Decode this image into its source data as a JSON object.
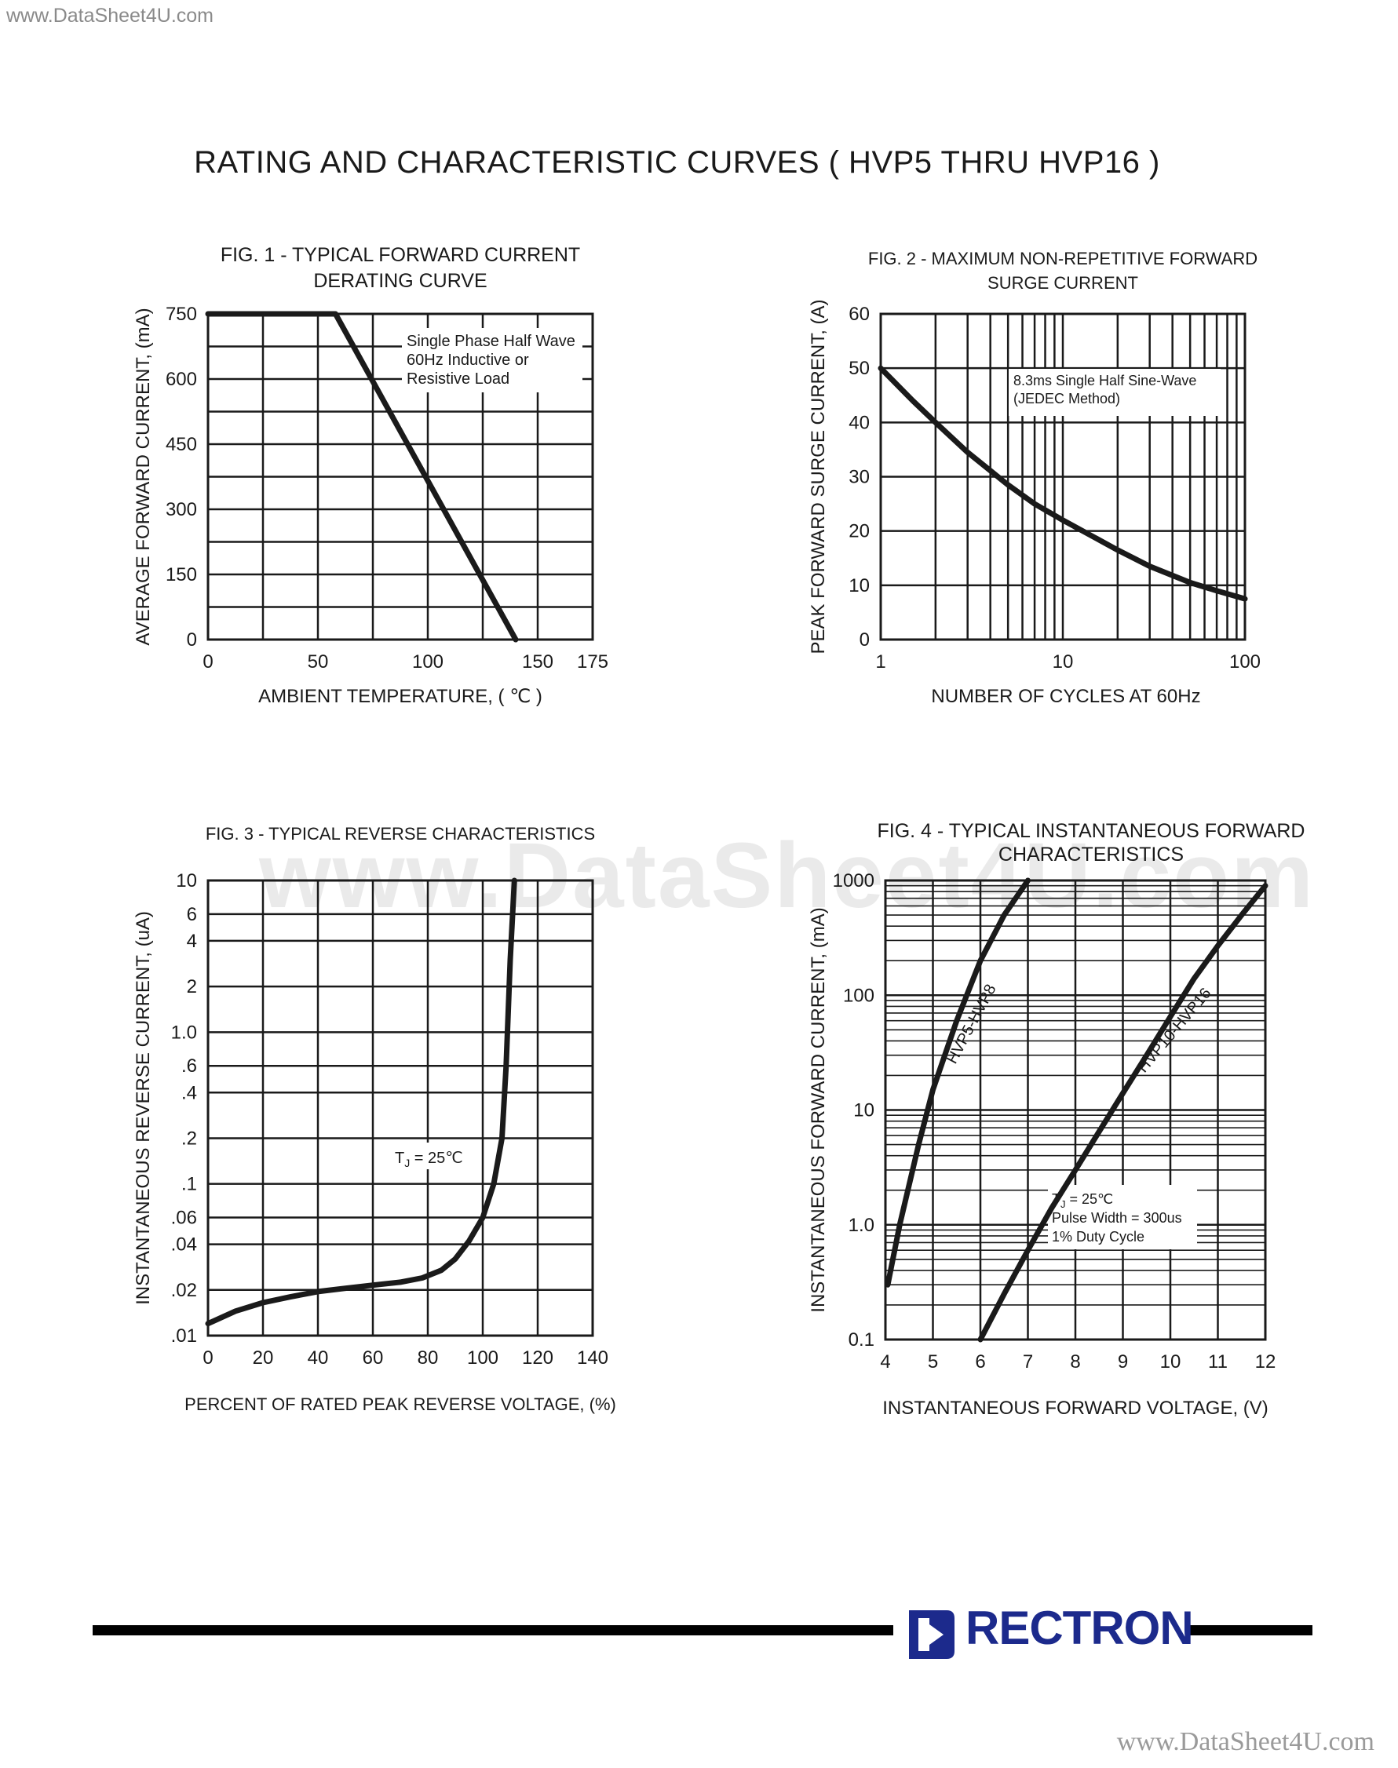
{
  "watermark_top": "www.DataSheet4U.com",
  "watermark_bottom": "www.DataSheet4U.com",
  "watermark_center": "www.DataSheet4U.com",
  "page_title": "RATING AND CHARACTERISTIC CURVES ( HVP5 THRU HVP16 )",
  "brand": {
    "name": "RECTRON",
    "color": "#1c2a8c"
  },
  "chart_data": [
    {
      "type": "line",
      "title": "FIG. 1 - TYPICAL FORWARD CURRENT DERATING CURVE",
      "title_lines": [
        "FIG. 1 - TYPICAL FORWARD CURRENT",
        "DERATING CURVE"
      ],
      "xlabel": "AMBIENT TEMPERATURE, ( ℃ )",
      "ylabel": "AVERAGE FORWARD CURRENT, (mA)",
      "xlim": [
        0,
        175
      ],
      "ylim": [
        0,
        750
      ],
      "xscale": "linear",
      "yscale": "linear",
      "xticks": [
        0,
        50,
        100,
        150,
        175
      ],
      "yticks": [
        0,
        150,
        300,
        450,
        600,
        750
      ],
      "grid": true,
      "annotation": [
        "Single Phase Half Wave",
        "60Hz Inductive or",
        "Resistive Load"
      ],
      "series": [
        {
          "x": [
            0,
            58,
            140
          ],
          "y": [
            750,
            750,
            0
          ]
        }
      ]
    },
    {
      "type": "line",
      "title": "FIG. 2 - MAXIMUM NON-REPETITIVE FORWARD SURGE CURRENT",
      "title_lines": [
        "FIG. 2 - MAXIMUM NON-REPETITIVE FORWARD",
        "SURGE CURRENT"
      ],
      "xlabel": "NUMBER OF CYCLES AT 60Hz",
      "ylabel": "PEAK FORWARD SURGE CURRENT, (A)",
      "xlim": [
        1,
        100
      ],
      "ylim": [
        0,
        60
      ],
      "xscale": "log",
      "yscale": "linear",
      "xticks": [
        1,
        10,
        100
      ],
      "yticks": [
        0,
        10,
        20,
        30,
        40,
        50,
        60
      ],
      "grid": true,
      "annotation": [
        "8.3ms Single Half Sine-Wave",
        "(JEDEC Method)"
      ],
      "series": [
        {
          "x": [
            1,
            1.5,
            2,
            3,
            5,
            7,
            10,
            20,
            30,
            50,
            70,
            100
          ],
          "y": [
            50,
            44,
            40,
            34.5,
            28.5,
            25,
            22,
            16.5,
            13.5,
            10.5,
            9,
            7.5
          ]
        }
      ]
    },
    {
      "type": "line",
      "title": "FIG. 3 - TYPICAL REVERSE CHARACTERISTICS",
      "title_lines": [
        "FIG. 3 - TYPICAL REVERSE CHARACTERISTICS"
      ],
      "xlabel": "PERCENT OF RATED PEAK REVERSE VOLTAGE, (%)",
      "ylabel": "INSTANTANEOUS REVERSE CURRENT, (uA)",
      "xlim": [
        0,
        140
      ],
      "ylim": [
        0.01,
        10
      ],
      "xscale": "linear",
      "yscale": "log",
      "xticks": [
        0,
        20,
        40,
        60,
        80,
        100,
        120,
        140
      ],
      "yticks": [
        0.01,
        0.02,
        0.04,
        0.06,
        0.1,
        0.2,
        0.4,
        0.6,
        1,
        2,
        4,
        6,
        10
      ],
      "ytick_labels": [
        ".01",
        ".02",
        ".04",
        ".06",
        ".1",
        ".2",
        ".4",
        ".6",
        "1.0",
        "2",
        "4",
        "6",
        "10"
      ],
      "grid": true,
      "annotation": [
        "T",
        "J",
        " = 25℃"
      ],
      "series": [
        {
          "x": [
            0,
            10,
            20,
            30,
            40,
            50,
            60,
            70,
            78,
            85,
            90,
            95,
            100,
            104,
            107,
            108.5,
            110,
            111.5
          ],
          "y": [
            0.012,
            0.0145,
            0.0165,
            0.018,
            0.0195,
            0.0205,
            0.0215,
            0.0225,
            0.024,
            0.027,
            0.032,
            0.042,
            0.06,
            0.1,
            0.2,
            0.6,
            3,
            10
          ]
        }
      ]
    },
    {
      "type": "line",
      "title": "FIG. 4 - TYPICAL INSTANTANEOUS FORWARD CHARACTERISTICS",
      "title_lines": [
        "FIG. 4 - TYPICAL INSTANTANEOUS FORWARD",
        "CHARACTERISTICS"
      ],
      "xlabel": "INSTANTANEOUS FORWARD VOLTAGE, (V)",
      "ylabel": "INSTANTANEOUS FORWARD CURRENT, (mA)",
      "xlim": [
        4,
        12
      ],
      "ylim": [
        0.1,
        1000
      ],
      "xscale": "linear",
      "yscale": "log",
      "xticks": [
        4,
        5,
        6,
        7,
        8,
        9,
        10,
        11,
        12
      ],
      "yticks": [
        0.1,
        1,
        10,
        100,
        1000
      ],
      "ytick_labels": [
        "0.1",
        "1.0",
        "10",
        "100",
        "1000"
      ],
      "grid": true,
      "annotation": [
        "T",
        "J",
        " = 25℃",
        "Pulse Width = 300us",
        "1% Duty Cycle"
      ],
      "series": [
        {
          "name": "HVP5-HVP8",
          "x": [
            4.05,
            4.3,
            4.7,
            5.0,
            5.5,
            6.0,
            6.5,
            7.0
          ],
          "y": [
            0.3,
            1.0,
            5.0,
            15,
            60,
            200,
            500,
            1000
          ]
        },
        {
          "name": "HVP10-HVP16",
          "x": [
            6.0,
            6.5,
            7.0,
            7.5,
            8.0,
            8.5,
            9.0,
            9.5,
            10.0,
            10.5,
            11.0,
            11.5,
            12.0
          ],
          "y": [
            0.1,
            0.25,
            0.6,
            1.4,
            3.0,
            6.5,
            14,
            30,
            65,
            140,
            270,
            500,
            900
          ]
        }
      ]
    }
  ]
}
